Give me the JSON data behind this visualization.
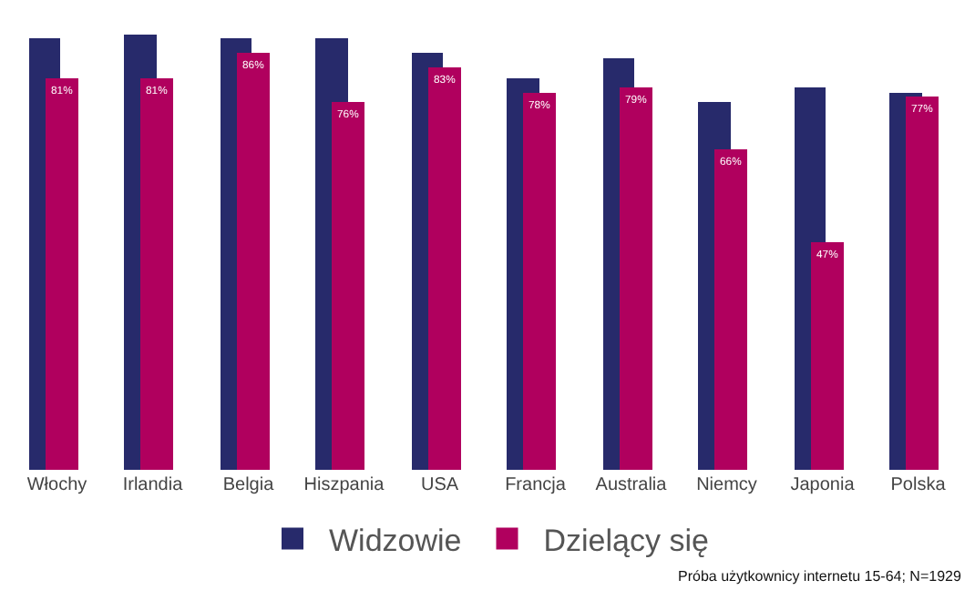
{
  "chart_data": {
    "type": "bar",
    "categories": [
      "Włochy",
      "Irlandia",
      "Belgia",
      "Hiszpania",
      "USA",
      "Francja",
      "Australia",
      "Niemcy",
      "Japonia",
      "Polska"
    ],
    "series": [
      {
        "name": "Widzowie",
        "color": "#272a6b",
        "values": [
          89,
          90,
          89,
          89,
          86,
          81,
          85,
          76,
          79,
          78
        ]
      },
      {
        "name": "Dzielący się",
        "color": "#b0005e",
        "values": [
          81,
          81,
          86,
          76,
          83,
          78,
          79,
          66,
          47,
          77
        ],
        "value_labels": [
          "81%",
          "81%",
          "86%",
          "76%",
          "83%",
          "78%",
          "79%",
          "66%",
          "47%",
          "77%"
        ]
      }
    ],
    "grid": false,
    "legend": "bottom",
    "tick_labels": "x",
    "annotations": [
      "Próba użytkownicy internetu 15-64; N=1929"
    ]
  }
}
